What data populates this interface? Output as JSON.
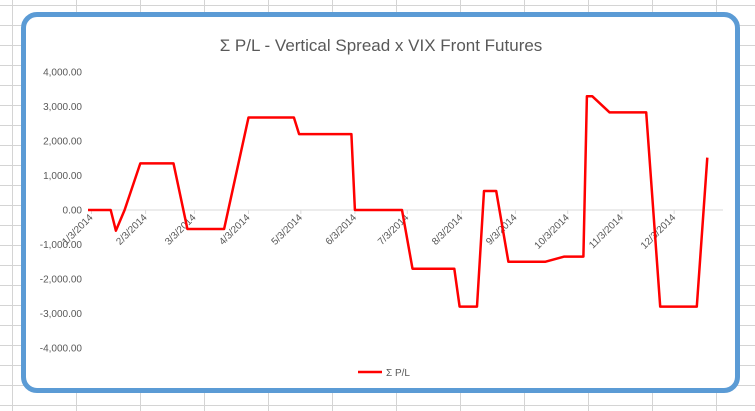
{
  "chart_data": {
    "type": "line",
    "title": "Σ P/L - Vertical Spread x VIX Front Futures",
    "xlabel": "",
    "ylabel": "",
    "x_start": "1/1/2014",
    "x_end": "12/31/2014",
    "xticks": [
      "1/3/2014",
      "2/3/2014",
      "3/3/2014",
      "4/3/2014",
      "5/3/2014",
      "6/3/2014",
      "7/3/2014",
      "8/3/2014",
      "9/3/2014",
      "10/3/2014",
      "11/3/2014",
      "12/3/2014"
    ],
    "yticks": [
      4000,
      3000,
      2000,
      1000,
      0,
      -1000,
      -2000,
      -3000,
      -4000
    ],
    "ytick_labels": [
      "4,000.00",
      "3,000.00",
      "2,000.00",
      "1,000.00",
      "0.00",
      "-1,000.00",
      "-2,000.00",
      "-3,000.00",
      "-4,000.00"
    ],
    "ylim": [
      -4000,
      4000
    ],
    "grid": false,
    "legend_position": "bottom",
    "series": [
      {
        "name": "Σ P/L",
        "color": "#ff0000",
        "x": [
          "1/1/2014",
          "1/6/2014",
          "1/14/2014",
          "1/17/2014",
          "1/22/2014",
          "1/31/2014",
          "2/10/2014",
          "2/19/2014",
          "2/27/2014",
          "3/12/2014",
          "3/20/2014",
          "4/3/2014",
          "4/20/2014",
          "4/29/2014",
          "5/2/2014",
          "5/25/2014",
          "6/1/2014",
          "6/3/2014",
          "6/20/2014",
          "6/30/2014",
          "7/6/2014",
          "7/10/2014",
          "7/20/2014",
          "7/30/2014",
          "8/2/2014",
          "8/12/2014",
          "8/16/2014",
          "8/23/2014",
          "8/30/2014",
          "9/9/2014",
          "9/14/2014",
          "9/20/2014",
          "10/1/2014",
          "10/9/2014",
          "10/12/2014",
          "10/14/2014",
          "10/17/2014",
          "10/27/2014",
          "11/9/2014",
          "11/17/2014",
          "11/25/2014",
          "12/2/2014",
          "12/16/2014",
          "12/22/2014"
        ],
        "values": [
          0,
          0,
          0,
          -600,
          0,
          1350,
          1350,
          1350,
          -550,
          -550,
          -550,
          2680,
          2680,
          2680,
          2200,
          2200,
          2200,
          0,
          0,
          0,
          -1700,
          -1700,
          -1700,
          -1700,
          -2800,
          -2800,
          550,
          550,
          -1500,
          -1500,
          -1500,
          -1500,
          -1350,
          -1350,
          -1350,
          3300,
          3300,
          2830,
          2830,
          2830,
          -2800,
          -2800,
          -2800,
          1520
        ]
      }
    ]
  }
}
